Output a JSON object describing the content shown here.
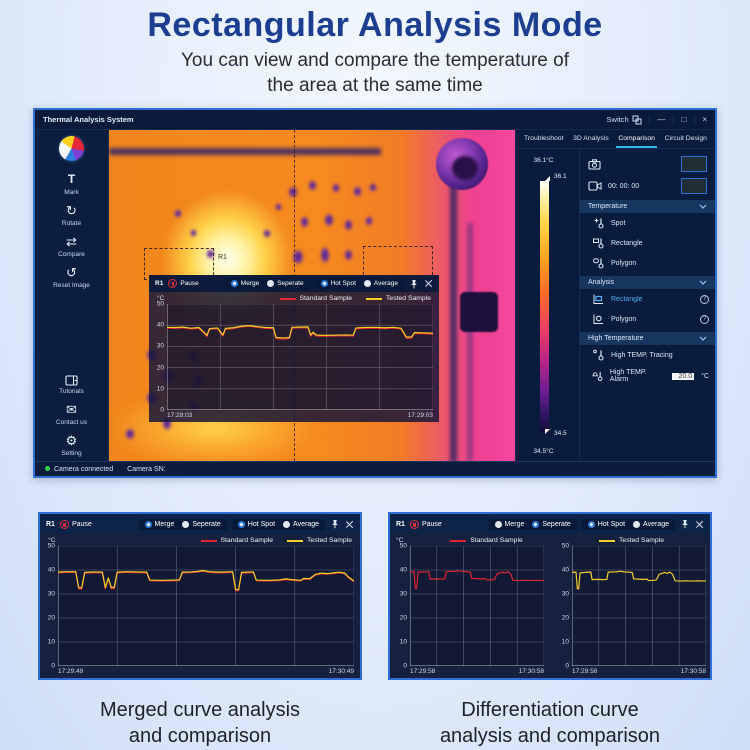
{
  "hero": {
    "title": "Rectangular Analysis Mode",
    "subtitle1": "You can view and compare the temperature of",
    "subtitle2": "the area at the same time"
  },
  "captions": {
    "left1": "Merged curve analysis",
    "left2": "and comparison",
    "right1": "Differentiation curve",
    "right2": "analysis and comparison"
  },
  "window": {
    "title": "Thermal Analysis System",
    "switch_label": "Switch",
    "controls": {
      "minimize": "—",
      "maximize": "□",
      "close": "×"
    },
    "tabs": [
      {
        "label": "Troubleshoot",
        "active": false
      },
      {
        "label": "3D Analysis",
        "active": false
      },
      {
        "label": "Comparison",
        "active": true
      },
      {
        "label": "Circuit Design",
        "active": false
      }
    ],
    "status": {
      "camera": "Camera connected",
      "sn": "Camera SN:"
    }
  },
  "sidebar": {
    "tools": [
      {
        "label": "Mark"
      },
      {
        "label": "Rotate"
      },
      {
        "label": "Compare"
      },
      {
        "label": "Reset Image"
      }
    ],
    "bottom": [
      {
        "label": "Tutorials"
      },
      {
        "label": "Contact us"
      },
      {
        "label": "Setting"
      }
    ]
  },
  "colorbar": {
    "top_label": "36.1°C",
    "top_tick": "36.1",
    "bottom_tick": "34.5",
    "bottom_label": "34.5°C"
  },
  "right_panel": {
    "record_time": "00: 00: 00",
    "temperature": {
      "title": "Temperature",
      "items": [
        "Spot",
        "Rectangle",
        "Polygon"
      ]
    },
    "analysis": {
      "title": "Analysis",
      "items": [
        {
          "label": "Rectangle",
          "active": true
        },
        {
          "label": "Polygon",
          "active": false
        }
      ]
    },
    "high_temp": {
      "title": "High Temperature",
      "tracing": "High TEMP. Tracing",
      "alarm": "High TEMP. Alarm",
      "alarm_value": "20.0",
      "alarm_unit": "°C"
    }
  },
  "roi": {
    "label": "R1"
  },
  "colors": {
    "accent": "#2e6fd6",
    "tab_underline": "#35b7e8",
    "standard_red": "#e02535",
    "tested_yellow": "#f2cf2a",
    "green": "#35d24a",
    "analysis_active": "#4db1f2"
  },
  "chart_data": {
    "type": "line",
    "ylabel": "°C",
    "ylim": [
      0,
      50
    ],
    "yticks": [
      50,
      40,
      30,
      20,
      10,
      0
    ],
    "grid": true,
    "panel_header": {
      "name": "R1",
      "pause": "Pause"
    },
    "radio_labels": {
      "merge": "Merge",
      "seperate": "Seperate",
      "hot_spot": "Hot Spot",
      "average": "Average"
    },
    "series": [
      {
        "name": "Standard Sample",
        "color": "#e02535",
        "points": [
          [
            0,
            38.6
          ],
          [
            3,
            38.5
          ],
          [
            6,
            38.7
          ],
          [
            9,
            38.2
          ],
          [
            12,
            38.5
          ],
          [
            14,
            36.2
          ],
          [
            15,
            34.6
          ],
          [
            16,
            38.0
          ],
          [
            19,
            38.3
          ],
          [
            21,
            34.9
          ],
          [
            22,
            38.1
          ],
          [
            25,
            38.4
          ],
          [
            28,
            39.2
          ],
          [
            31,
            39.5
          ],
          [
            34,
            39.0
          ],
          [
            37,
            38.5
          ],
          [
            40,
            38.4
          ],
          [
            41,
            33.6
          ],
          [
            44,
            33.4
          ],
          [
            46,
            33.7
          ],
          [
            47,
            38.6
          ],
          [
            50,
            38.7
          ],
          [
            53,
            38.8
          ],
          [
            54,
            34.8
          ],
          [
            55,
            36.3
          ],
          [
            56,
            34.9
          ],
          [
            59,
            34.8
          ],
          [
            63,
            34.9
          ],
          [
            67,
            35.0
          ],
          [
            70,
            34.9
          ],
          [
            71,
            38.3
          ],
          [
            74,
            38.5
          ],
          [
            78,
            38.6
          ],
          [
            82,
            38.4
          ],
          [
            85,
            38.6
          ],
          [
            88,
            38.2
          ],
          [
            90,
            33.8
          ],
          [
            92,
            34.0
          ],
          [
            93,
            36.1
          ],
          [
            96,
            36.0
          ],
          [
            100,
            35.8
          ]
        ]
      },
      {
        "name": "Tested Sample",
        "color": "#f2cf2a",
        "points": [
          [
            0,
            39.0
          ],
          [
            3,
            38.9
          ],
          [
            6,
            39.1
          ],
          [
            9,
            38.6
          ],
          [
            12,
            38.9
          ],
          [
            14,
            36.6
          ],
          [
            15,
            35.2
          ],
          [
            16,
            38.4
          ],
          [
            19,
            38.7
          ],
          [
            21,
            35.4
          ],
          [
            22,
            38.5
          ],
          [
            25,
            38.8
          ],
          [
            28,
            39.5
          ],
          [
            31,
            39.8
          ],
          [
            34,
            39.3
          ],
          [
            37,
            38.9
          ],
          [
            40,
            38.8
          ],
          [
            41,
            34.2
          ],
          [
            44,
            34.0
          ],
          [
            46,
            34.2
          ],
          [
            47,
            39.0
          ],
          [
            50,
            39.1
          ],
          [
            53,
            39.2
          ],
          [
            54,
            35.4
          ],
          [
            55,
            36.7
          ],
          [
            56,
            35.4
          ],
          [
            59,
            35.2
          ],
          [
            63,
            35.3
          ],
          [
            67,
            35.4
          ],
          [
            70,
            35.3
          ],
          [
            71,
            38.7
          ],
          [
            74,
            38.9
          ],
          [
            78,
            39.0
          ],
          [
            82,
            38.8
          ],
          [
            85,
            39.0
          ],
          [
            88,
            38.6
          ],
          [
            90,
            34.4
          ],
          [
            92,
            34.5
          ],
          [
            93,
            36.5
          ],
          [
            96,
            36.4
          ],
          [
            100,
            36.2
          ]
        ]
      },
      {
        "name": "Standard Sample",
        "color": "#e02535",
        "points": [
          [
            0,
            38.8
          ],
          [
            3,
            39.0
          ],
          [
            6,
            39.0
          ],
          [
            7,
            32.0
          ],
          [
            8,
            32.0
          ],
          [
            9,
            38.7
          ],
          [
            12,
            38.9
          ],
          [
            15,
            38.8
          ],
          [
            16,
            32.1
          ],
          [
            17,
            36.4
          ],
          [
            18,
            32.1
          ],
          [
            19,
            32.2
          ],
          [
            20,
            38.8
          ],
          [
            23,
            39.0
          ],
          [
            27,
            38.9
          ],
          [
            30,
            38.8
          ],
          [
            31,
            35.5
          ],
          [
            35,
            35.4
          ],
          [
            39,
            35.5
          ],
          [
            41,
            35.6
          ],
          [
            42,
            38.8
          ],
          [
            45,
            38.9
          ],
          [
            47,
            39.1
          ],
          [
            49,
            39.5
          ],
          [
            51,
            39.0
          ],
          [
            54,
            38.8
          ],
          [
            57,
            38.9
          ],
          [
            59,
            39.0
          ],
          [
            60,
            31.4
          ],
          [
            61,
            31.4
          ],
          [
            62,
            38.7
          ],
          [
            64,
            38.8
          ],
          [
            66,
            38.9
          ],
          [
            67,
            35.5
          ],
          [
            71,
            35.4
          ],
          [
            75,
            35.6
          ],
          [
            77,
            36.0
          ],
          [
            79,
            35.7
          ],
          [
            82,
            35.4
          ],
          [
            83,
            36.2
          ],
          [
            85,
            36.1
          ],
          [
            87,
            37.9
          ],
          [
            89,
            38.4
          ],
          [
            91,
            38.2
          ],
          [
            93,
            38.5
          ],
          [
            95,
            38.8
          ],
          [
            97,
            38.4
          ],
          [
            98,
            36.9
          ],
          [
            100,
            35.1
          ]
        ]
      },
      {
        "name": "Tested Sample",
        "color": "#f2cf2a",
        "points": [
          [
            0,
            39.1
          ],
          [
            3,
            39.3
          ],
          [
            6,
            39.3
          ],
          [
            7,
            32.6
          ],
          [
            8,
            32.6
          ],
          [
            9,
            39.0
          ],
          [
            12,
            39.2
          ],
          [
            15,
            39.1
          ],
          [
            16,
            32.7
          ],
          [
            17,
            36.7
          ],
          [
            18,
            32.7
          ],
          [
            19,
            32.8
          ],
          [
            20,
            39.1
          ],
          [
            23,
            39.3
          ],
          [
            27,
            39.2
          ],
          [
            30,
            39.1
          ],
          [
            31,
            35.8
          ],
          [
            35,
            35.7
          ],
          [
            39,
            35.8
          ],
          [
            41,
            35.9
          ],
          [
            42,
            39.1
          ],
          [
            45,
            39.2
          ],
          [
            47,
            39.4
          ],
          [
            49,
            39.8
          ],
          [
            51,
            39.3
          ],
          [
            54,
            39.1
          ],
          [
            57,
            39.2
          ],
          [
            59,
            39.3
          ],
          [
            60,
            31.8
          ],
          [
            61,
            31.8
          ],
          [
            62,
            39.0
          ],
          [
            64,
            39.1
          ],
          [
            66,
            39.2
          ],
          [
            67,
            35.8
          ],
          [
            71,
            35.7
          ],
          [
            75,
            35.9
          ],
          [
            77,
            36.3
          ],
          [
            79,
            36.0
          ],
          [
            82,
            35.7
          ],
          [
            83,
            36.5
          ],
          [
            85,
            36.4
          ],
          [
            87,
            38.2
          ],
          [
            89,
            38.7
          ],
          [
            91,
            38.5
          ],
          [
            93,
            38.8
          ],
          [
            95,
            39.1
          ],
          [
            97,
            38.7
          ],
          [
            98,
            37.2
          ],
          [
            100,
            35.4
          ]
        ]
      },
      {
        "name": "Standard Sample",
        "color": "#e02535",
        "points": [
          [
            0,
            39.2
          ],
          [
            3,
            39.3
          ],
          [
            4,
            32.4
          ],
          [
            5,
            32.4
          ],
          [
            6,
            39.0
          ],
          [
            10,
            39.2
          ],
          [
            14,
            39.3
          ],
          [
            15,
            36.2
          ],
          [
            19,
            36.3
          ],
          [
            23,
            36.2
          ],
          [
            26,
            36.3
          ],
          [
            27,
            39.3
          ],
          [
            30,
            39.4
          ],
          [
            33,
            39.4
          ],
          [
            36,
            39.7
          ],
          [
            39,
            39.4
          ],
          [
            43,
            39.3
          ],
          [
            45,
            39.1
          ],
          [
            46,
            36.5
          ],
          [
            49,
            36.4
          ],
          [
            53,
            36.3
          ],
          [
            56,
            36.4
          ],
          [
            57,
            35.8
          ],
          [
            61,
            35.9
          ],
          [
            63,
            36.1
          ],
          [
            65,
            38.4
          ],
          [
            67,
            38.7
          ],
          [
            69,
            39.2
          ],
          [
            71,
            38.8
          ],
          [
            73,
            39.3
          ],
          [
            75,
            38.4
          ],
          [
            77,
            35.7
          ],
          [
            81,
            35.6
          ],
          [
            85,
            35.7
          ],
          [
            89,
            35.6
          ],
          [
            94,
            35.7
          ],
          [
            100,
            35.6
          ]
        ]
      },
      {
        "name": "Tested Sample",
        "color": "#f2cf2a",
        "points": [
          [
            0,
            39.0
          ],
          [
            3,
            39.1
          ],
          [
            4,
            32.2
          ],
          [
            5,
            32.2
          ],
          [
            6,
            38.8
          ],
          [
            10,
            39.0
          ],
          [
            14,
            39.1
          ],
          [
            15,
            36.0
          ],
          [
            19,
            36.1
          ],
          [
            23,
            36.0
          ],
          [
            26,
            36.1
          ],
          [
            27,
            39.1
          ],
          [
            30,
            39.2
          ],
          [
            33,
            39.2
          ],
          [
            36,
            39.5
          ],
          [
            39,
            39.2
          ],
          [
            43,
            39.1
          ],
          [
            45,
            38.9
          ],
          [
            46,
            36.3
          ],
          [
            49,
            36.2
          ],
          [
            53,
            36.1
          ],
          [
            56,
            36.2
          ],
          [
            57,
            35.6
          ],
          [
            61,
            35.7
          ],
          [
            63,
            35.9
          ],
          [
            65,
            38.2
          ],
          [
            67,
            38.5
          ],
          [
            69,
            39.0
          ],
          [
            71,
            38.6
          ],
          [
            73,
            39.1
          ],
          [
            75,
            38.2
          ],
          [
            77,
            35.5
          ],
          [
            81,
            35.4
          ],
          [
            85,
            35.5
          ],
          [
            89,
            35.4
          ],
          [
            94,
            35.5
          ],
          [
            100,
            35.4
          ]
        ]
      }
    ],
    "panels": [
      {
        "location": "thermal-overlay",
        "radios": {
          "merge": true,
          "seperate": false,
          "hot_spot": true,
          "average": false
        },
        "plots": [
          {
            "x_start": "17:28:03",
            "x_end": "17:29:03",
            "series": [
              0,
              1
            ]
          }
        ]
      },
      {
        "location": "bottom-left",
        "radios": {
          "merge": true,
          "seperate": false,
          "hot_spot": true,
          "average": false
        },
        "plots": [
          {
            "x_start": "17:29:49",
            "x_end": "17:30:49",
            "series": [
              2,
              3
            ]
          }
        ]
      },
      {
        "location": "bottom-right",
        "radios": {
          "merge": false,
          "seperate": true,
          "hot_spot": true,
          "average": false
        },
        "plots": [
          {
            "x_start": "17:29:58",
            "x_end": "17:30:58",
            "series": [
              4
            ]
          },
          {
            "x_start": "17:29:58",
            "x_end": "17:30:58",
            "series": [
              5
            ]
          }
        ]
      }
    ]
  }
}
